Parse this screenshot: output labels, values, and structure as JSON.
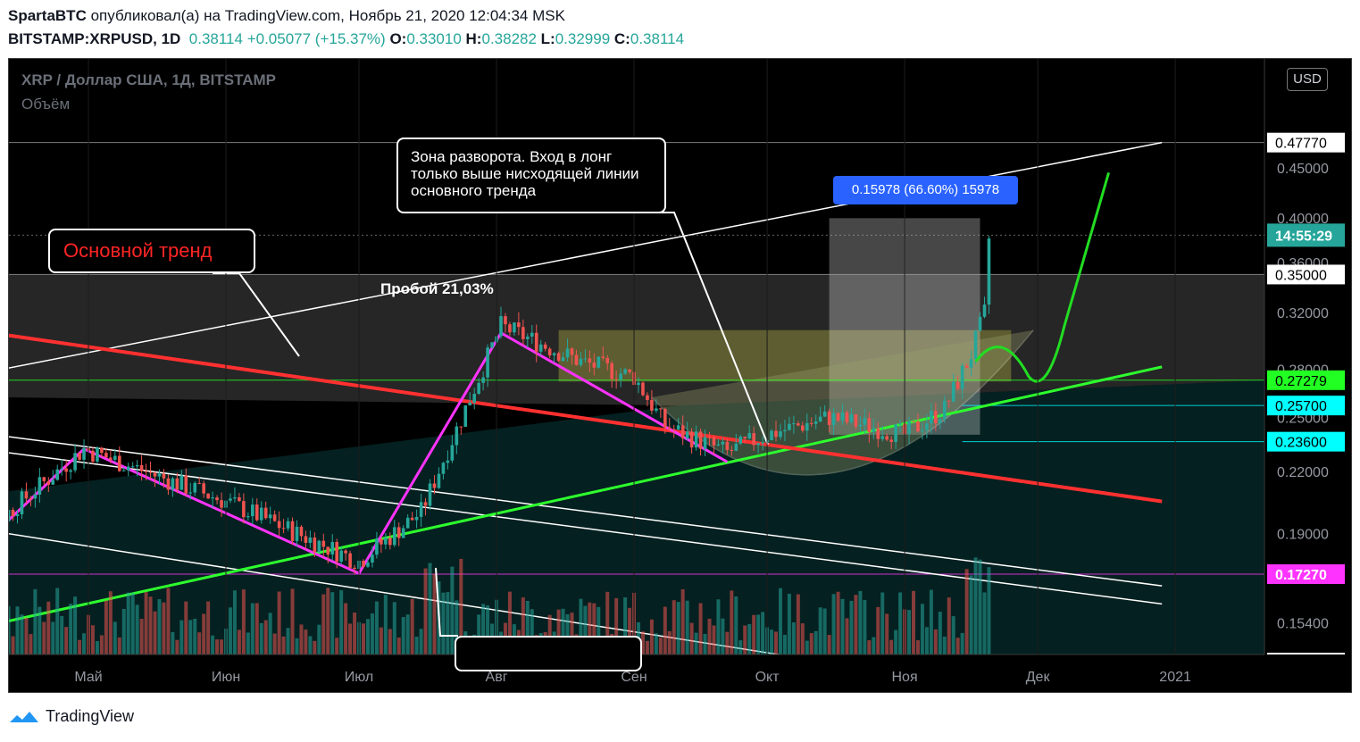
{
  "header": {
    "author": "SpartaBTC",
    "published_text": "опубликовал(а) на TradingView.com, Ноябрь 21, 2020 12:04:34 MSK",
    "symbol": "BITSTAMP:XRPUSD, 1D",
    "last": "0.38114",
    "change": "+0.05077 (+15.37%)",
    "o_label": "O:",
    "o_value": "0.33010",
    "h_label": "H:",
    "h_value": "0.38282",
    "l_label": "L:",
    "l_value": "0.32999",
    "c_label": "C:",
    "c_value": "0.38114"
  },
  "legend": {
    "title": "XRP / Доллар США, 1Д, BITSTAMP",
    "volume": "Объём"
  },
  "currency_button": "USD",
  "footer": {
    "brand": "TradingView"
  },
  "annotations": {
    "main_trend": "Основной тренд",
    "reversal_zone": "Зона разворота. Вход в лонг только выше нисходящей линии основного тренда",
    "breakout": "Пробой 21,03%",
    "measure": "0.15978 (66.60%) 15978"
  },
  "colors": {
    "background": "#000000",
    "candle_up": "#26a69a",
    "candle_down": "#ef5350",
    "main_trend_line": "#ff3030",
    "support_line": "#2eff2e",
    "zigzag": "#ff33ff",
    "projection": "#22dd22",
    "price_badge": "#ffffff",
    "countdown_badge": "#26a69a",
    "green_badge": "#22ff22",
    "cyan_badge": "#00ffff",
    "magenta_badge": "#ff33ff"
  },
  "chart_data": {
    "type": "candlestick",
    "y_axis": {
      "scale": "log",
      "ticks": [
        "0.45000",
        "0.40000",
        "0.36000",
        "0.32000",
        "0.28000",
        "0.25000",
        "0.22000",
        "0.19000",
        "0.15400"
      ]
    },
    "x_axis": {
      "ticks": [
        "Май",
        "Июн",
        "Июл",
        "Авг",
        "Сен",
        "Окт",
        "Ноя",
        "Дек",
        "2021"
      ]
    },
    "price_labels": [
      {
        "value": 0.4777,
        "text": "0.47770",
        "style": "white"
      },
      {
        "value": 0.35,
        "text": "0.35000",
        "style": "white"
      },
      {
        "value": 0.2728,
        "text": "0.27279",
        "style": "green"
      },
      {
        "value": 0.257,
        "text": "0.25700",
        "style": "cyan"
      },
      {
        "value": 0.236,
        "text": "0.23600",
        "style": "cyan"
      },
      {
        "value": 0.1727,
        "text": "0.17270",
        "style": "magenta"
      }
    ],
    "countdown": {
      "text": "14:55:29",
      "value": 0.384
    },
    "measure_range": {
      "from": 0.2399,
      "to": 0.3997,
      "change": "0.15978",
      "percent": "66.60%"
    },
    "zigzag": [
      {
        "date": "2020-04-06",
        "price": 0.183
      },
      {
        "date": "2020-04-30",
        "price": 0.232
      },
      {
        "date": "2020-07-01",
        "price": 0.173
      },
      {
        "date": "2020-08-02",
        "price": 0.305
      },
      {
        "date": "2020-09-22",
        "price": 0.225
      }
    ],
    "anchors": [
      {
        "date": "2020-04-01",
        "price": 0.156,
        "close": 0.18
      },
      {
        "date": "2020-04-30",
        "price": 0.185,
        "close": 0.232
      },
      {
        "date": "2020-06-01",
        "price": 0.175,
        "close": 0.205
      },
      {
        "date": "2020-07-01",
        "price": 0.176,
        "close": 0.178
      },
      {
        "date": "2020-07-15",
        "price": 0.196,
        "close": 0.2
      },
      {
        "date": "2020-08-02",
        "price": 0.305,
        "close": 0.31
      },
      {
        "date": "2020-08-20",
        "price": 0.285,
        "close": 0.285
      },
      {
        "date": "2020-09-01",
        "price": 0.275,
        "close": 0.275
      },
      {
        "date": "2020-09-08",
        "price": 0.245,
        "close": 0.245
      },
      {
        "date": "2020-09-22",
        "price": 0.23,
        "close": 0.23
      },
      {
        "date": "2020-10-01",
        "price": 0.24,
        "close": 0.24
      },
      {
        "date": "2020-10-15",
        "price": 0.25,
        "close": 0.25
      },
      {
        "date": "2020-11-01",
        "price": 0.24,
        "close": 0.24
      },
      {
        "date": "2020-11-10",
        "price": 0.255,
        "close": 0.255
      },
      {
        "date": "2020-11-16",
        "price": 0.29,
        "close": 0.29
      },
      {
        "date": "2020-11-20",
        "price": 0.33,
        "close": 0.33
      },
      {
        "date": "2020-11-21",
        "price": 0.381,
        "close": 0.381
      }
    ]
  }
}
